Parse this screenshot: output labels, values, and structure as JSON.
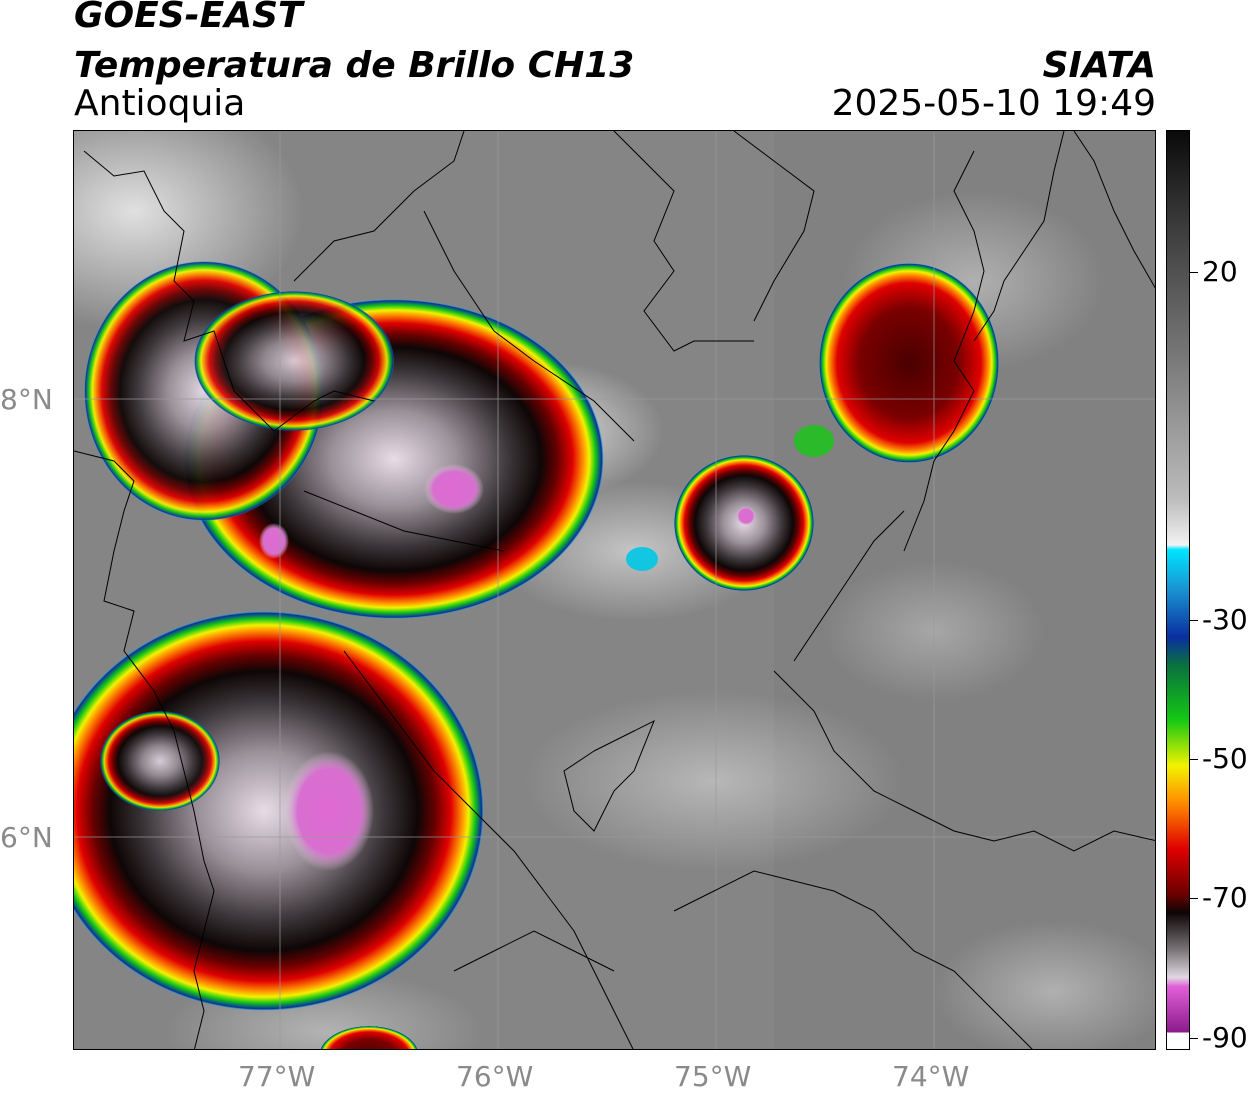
{
  "header": {
    "satellite": "GOES-EAST",
    "product": "Temperatura de Brillo CH13",
    "region": "Antioquia",
    "organization": "SIATA",
    "datetime": "2025-05-10 19:49"
  },
  "map": {
    "lat_labels": [
      "8°N",
      "6°N"
    ],
    "lon_labels": [
      "77°W",
      "76°W",
      "75°W",
      "74°W"
    ]
  },
  "colorbar": {
    "labels": [
      "20",
      "-30",
      "-50",
      "-70",
      "-90"
    ],
    "colors": {
      "warm_black": "#0a0a0a",
      "gray_mid": "#7a7a7a",
      "white": "#f2f2f2",
      "cyan": "#00e5ff",
      "blue": "#0a2fa0",
      "green": "#14c814",
      "yellow": "#f2f200",
      "orange": "#ff8c00",
      "red": "#e00000",
      "dark_red": "#6a0000",
      "magenta": "#e040d0",
      "purple": "#8a1a8a"
    }
  }
}
